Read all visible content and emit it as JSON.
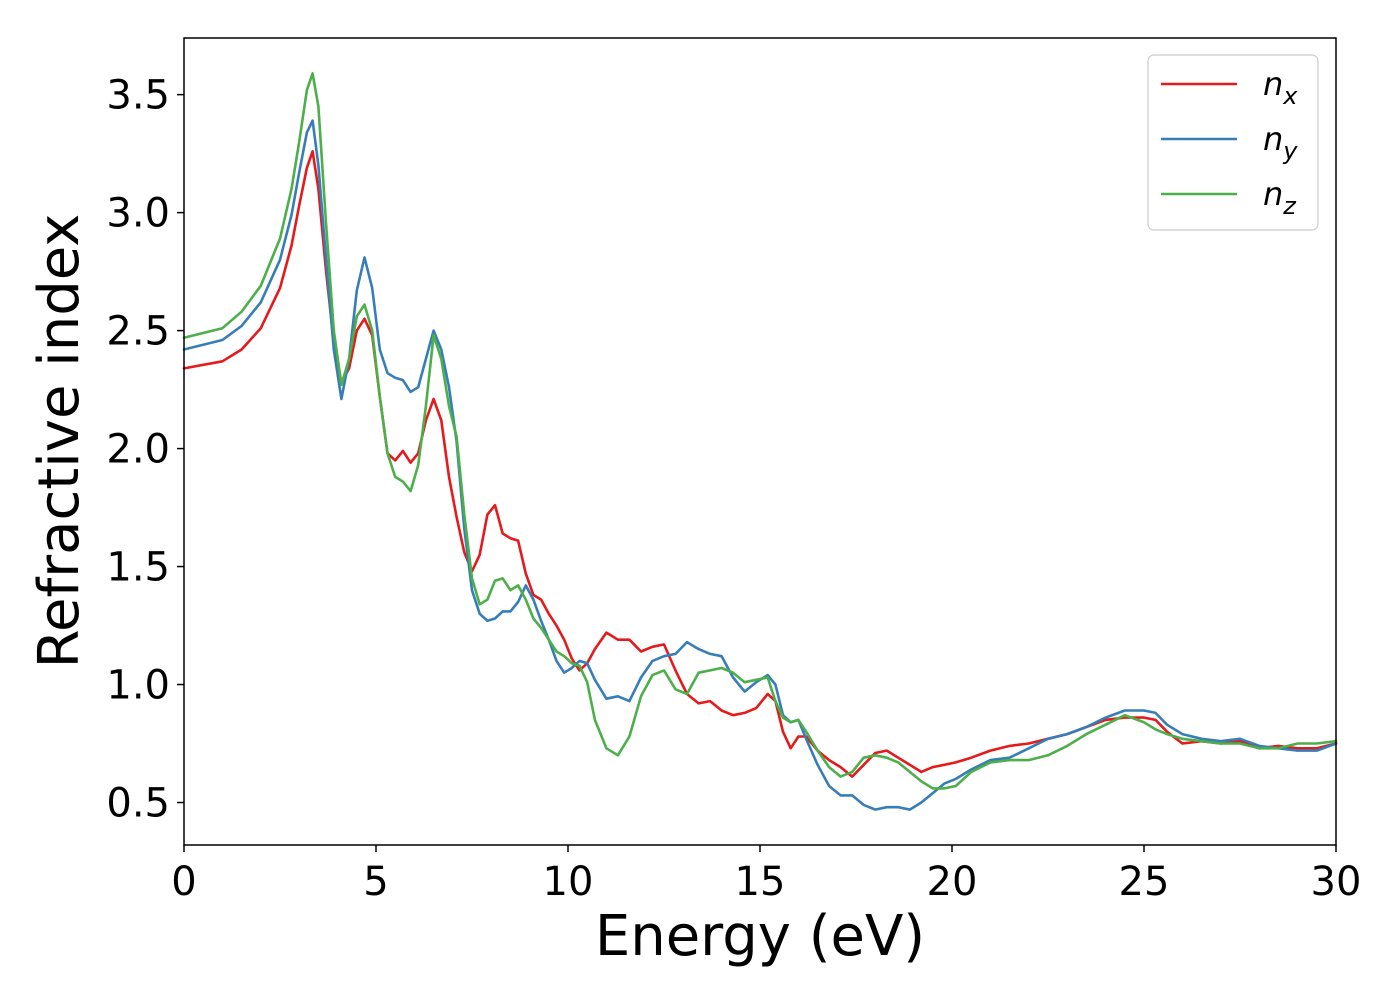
{
  "chart_data": {
    "type": "line",
    "title": "",
    "xlabel": "Energy (eV)",
    "ylabel": "Refractive index",
    "xlim": [
      0,
      30
    ],
    "ylim": [
      0.32,
      3.74
    ],
    "xticks": [
      0,
      5,
      10,
      15,
      20,
      25,
      30
    ],
    "xtick_labels": [
      "0",
      "5",
      "10",
      "15",
      "20",
      "25",
      "30"
    ],
    "yticks": [
      0.5,
      1.0,
      1.5,
      2.0,
      2.5,
      3.0,
      3.5
    ],
    "ytick_labels": [
      "0.5",
      "1.0",
      "1.5",
      "2.0",
      "2.5",
      "3.0",
      "3.5"
    ],
    "grid": false,
    "legend_position": "top-right",
    "series": [
      {
        "name": "n_x",
        "base": "n",
        "sub": "x",
        "color": "#e41a1c",
        "x": [
          0,
          1,
          1.5,
          2,
          2.5,
          2.8,
          3,
          3.2,
          3.35,
          3.5,
          3.7,
          3.9,
          4.1,
          4.3,
          4.5,
          4.7,
          4.9,
          5.1,
          5.3,
          5.5,
          5.7,
          5.9,
          6.1,
          6.3,
          6.5,
          6.7,
          6.9,
          7.1,
          7.3,
          7.5,
          7.7,
          7.9,
          8.1,
          8.3,
          8.5,
          8.7,
          8.9,
          9.1,
          9.3,
          9.5,
          9.7,
          9.9,
          10.1,
          10.3,
          10.5,
          10.7,
          11,
          11.3,
          11.6,
          11.9,
          12.2,
          12.5,
          12.8,
          13.1,
          13.4,
          13.7,
          14,
          14.3,
          14.6,
          14.9,
          15.2,
          15.4,
          15.6,
          15.8,
          16,
          16.2,
          16.5,
          16.8,
          17.1,
          17.4,
          17.7,
          18,
          18.3,
          18.6,
          18.9,
          19.2,
          19.5,
          19.8,
          20.1,
          20.5,
          21,
          21.5,
          22,
          22.5,
          23,
          23.5,
          24,
          24.5,
          25,
          25.3,
          25.6,
          26,
          26.5,
          27,
          27.5,
          28,
          28.5,
          29,
          29.5,
          30
        ],
        "y": [
          2.34,
          2.37,
          2.42,
          2.51,
          2.68,
          2.86,
          3.03,
          3.19,
          3.26,
          3.1,
          2.75,
          2.45,
          2.28,
          2.34,
          2.5,
          2.55,
          2.48,
          2.22,
          1.98,
          1.95,
          1.99,
          1.94,
          1.98,
          2.12,
          2.21,
          2.12,
          1.88,
          1.71,
          1.56,
          1.48,
          1.55,
          1.72,
          1.76,
          1.64,
          1.62,
          1.61,
          1.47,
          1.38,
          1.36,
          1.3,
          1.25,
          1.19,
          1.11,
          1.06,
          1.09,
          1.15,
          1.22,
          1.19,
          1.19,
          1.14,
          1.16,
          1.17,
          1.06,
          0.96,
          0.92,
          0.93,
          0.89,
          0.87,
          0.88,
          0.9,
          0.96,
          0.93,
          0.8,
          0.73,
          0.78,
          0.78,
          0.72,
          0.68,
          0.65,
          0.61,
          0.66,
          0.71,
          0.72,
          0.69,
          0.66,
          0.63,
          0.65,
          0.66,
          0.67,
          0.69,
          0.72,
          0.74,
          0.75,
          0.77,
          0.79,
          0.82,
          0.85,
          0.86,
          0.86,
          0.85,
          0.8,
          0.75,
          0.76,
          0.75,
          0.76,
          0.73,
          0.74,
          0.73,
          0.73,
          0.75
        ]
      },
      {
        "name": "n_y",
        "base": "n",
        "sub": "y",
        "color": "#377eb8",
        "x": [
          0,
          1,
          1.5,
          2,
          2.5,
          2.8,
          3,
          3.2,
          3.35,
          3.5,
          3.7,
          3.9,
          4.1,
          4.3,
          4.5,
          4.7,
          4.9,
          5.1,
          5.3,
          5.5,
          5.7,
          5.9,
          6.1,
          6.3,
          6.5,
          6.7,
          6.9,
          7.1,
          7.3,
          7.5,
          7.7,
          7.9,
          8.1,
          8.3,
          8.5,
          8.7,
          8.9,
          9.1,
          9.3,
          9.5,
          9.7,
          9.9,
          10.1,
          10.3,
          10.5,
          10.7,
          11,
          11.3,
          11.6,
          11.9,
          12.2,
          12.5,
          12.8,
          13.1,
          13.4,
          13.7,
          14,
          14.3,
          14.6,
          14.9,
          15.2,
          15.4,
          15.6,
          15.8,
          16,
          16.2,
          16.5,
          16.8,
          17.1,
          17.4,
          17.7,
          18,
          18.3,
          18.6,
          18.9,
          19.2,
          19.5,
          19.8,
          20.1,
          20.5,
          21,
          21.5,
          22,
          22.5,
          23,
          23.5,
          24,
          24.5,
          25,
          25.3,
          25.6,
          26,
          26.5,
          27,
          27.5,
          28,
          28.5,
          29,
          29.5,
          30
        ],
        "y": [
          2.42,
          2.46,
          2.52,
          2.62,
          2.8,
          2.99,
          3.17,
          3.34,
          3.39,
          3.2,
          2.8,
          2.42,
          2.21,
          2.38,
          2.67,
          2.81,
          2.68,
          2.42,
          2.32,
          2.3,
          2.29,
          2.24,
          2.26,
          2.38,
          2.5,
          2.42,
          2.26,
          2.03,
          1.66,
          1.4,
          1.3,
          1.27,
          1.28,
          1.31,
          1.31,
          1.35,
          1.42,
          1.36,
          1.27,
          1.19,
          1.1,
          1.05,
          1.07,
          1.1,
          1.09,
          1.02,
          0.94,
          0.95,
          0.93,
          1.03,
          1.1,
          1.12,
          1.13,
          1.18,
          1.15,
          1.13,
          1.12,
          1.03,
          0.97,
          1.01,
          1.04,
          1.0,
          0.87,
          0.84,
          0.85,
          0.77,
          0.66,
          0.57,
          0.53,
          0.53,
          0.49,
          0.47,
          0.48,
          0.48,
          0.47,
          0.5,
          0.54,
          0.58,
          0.6,
          0.64,
          0.68,
          0.69,
          0.73,
          0.77,
          0.79,
          0.82,
          0.86,
          0.89,
          0.89,
          0.88,
          0.83,
          0.79,
          0.77,
          0.76,
          0.77,
          0.74,
          0.73,
          0.72,
          0.72,
          0.75
        ]
      },
      {
        "name": "n_z",
        "base": "n",
        "sub": "z",
        "color": "#4daf4a",
        "x": [
          0,
          1,
          1.5,
          2,
          2.5,
          2.8,
          3,
          3.2,
          3.35,
          3.5,
          3.7,
          3.9,
          4.1,
          4.3,
          4.5,
          4.7,
          4.9,
          5.1,
          5.3,
          5.5,
          5.7,
          5.9,
          6.1,
          6.3,
          6.5,
          6.7,
          6.9,
          7.1,
          7.3,
          7.5,
          7.7,
          7.9,
          8.1,
          8.3,
          8.5,
          8.7,
          8.9,
          9.1,
          9.3,
          9.5,
          9.7,
          9.9,
          10.1,
          10.3,
          10.5,
          10.7,
          11,
          11.3,
          11.6,
          11.9,
          12.2,
          12.5,
          12.8,
          13.1,
          13.4,
          13.7,
          14,
          14.3,
          14.6,
          14.9,
          15.2,
          15.4,
          15.6,
          15.8,
          16,
          16.2,
          16.5,
          16.8,
          17.1,
          17.4,
          17.7,
          18,
          18.3,
          18.6,
          18.9,
          19.2,
          19.5,
          19.8,
          20.1,
          20.5,
          21,
          21.5,
          22,
          22.5,
          23,
          23.5,
          24,
          24.5,
          25,
          25.3,
          25.6,
          26,
          26.5,
          27,
          27.5,
          28,
          28.5,
          29,
          29.5,
          30
        ],
        "y": [
          2.47,
          2.51,
          2.58,
          2.69,
          2.89,
          3.1,
          3.3,
          3.52,
          3.59,
          3.45,
          2.95,
          2.5,
          2.27,
          2.38,
          2.56,
          2.61,
          2.5,
          2.22,
          1.98,
          1.88,
          1.86,
          1.82,
          1.93,
          2.18,
          2.48,
          2.38,
          2.18,
          2.05,
          1.72,
          1.45,
          1.34,
          1.36,
          1.44,
          1.45,
          1.4,
          1.42,
          1.36,
          1.28,
          1.24,
          1.19,
          1.14,
          1.12,
          1.09,
          1.08,
          1.01,
          0.85,
          0.73,
          0.7,
          0.78,
          0.95,
          1.04,
          1.06,
          0.98,
          0.96,
          1.05,
          1.06,
          1.07,
          1.05,
          1.01,
          1.02,
          1.03,
          0.93,
          0.86,
          0.84,
          0.85,
          0.8,
          0.72,
          0.65,
          0.61,
          0.63,
          0.69,
          0.7,
          0.69,
          0.67,
          0.63,
          0.59,
          0.56,
          0.56,
          0.57,
          0.63,
          0.67,
          0.68,
          0.68,
          0.7,
          0.74,
          0.79,
          0.83,
          0.87,
          0.84,
          0.81,
          0.79,
          0.77,
          0.76,
          0.75,
          0.75,
          0.73,
          0.73,
          0.75,
          0.75,
          0.76
        ]
      }
    ]
  }
}
